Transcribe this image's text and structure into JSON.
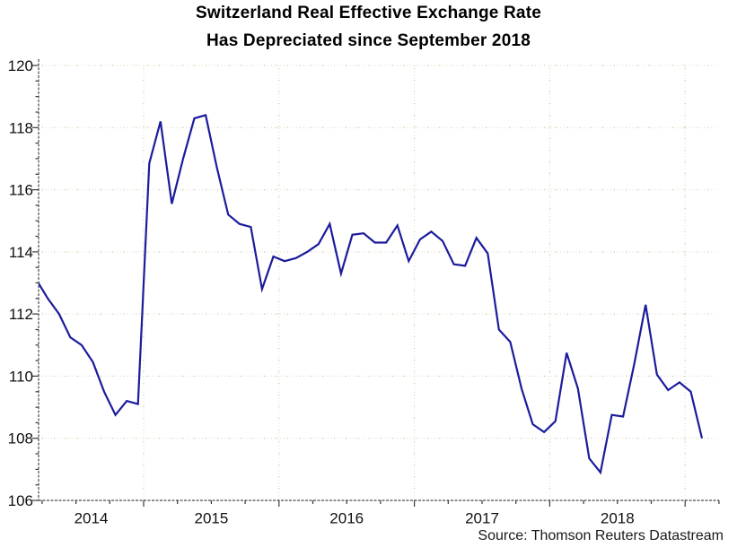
{
  "chart_data": {
    "type": "line",
    "title_line1": "Switzerland Real Effective Exchange Rate",
    "title_line2": "Has Depreciated since September 2018",
    "source_note": "Source: Thomson Reuters Datastream",
    "ylim": [
      106,
      120
    ],
    "y_ticks": [
      106,
      108,
      110,
      112,
      114,
      116,
      118,
      120
    ],
    "y_minor_tick_step": 0.5,
    "x_tick_frequency": "quarterly",
    "x_year_labels": [
      "2014",
      "2015",
      "2016",
      "2017",
      "2018"
    ],
    "x_gridlines_at": [
      "Jan 2015",
      "Jan 2016",
      "Jan 2017",
      "Jan 2018",
      "Jan 2019"
    ],
    "grid": "dotted",
    "legend": "none",
    "frequency": "monthly",
    "start_month": "2014-03",
    "end_month": "2019-02",
    "line_color": "#1c1c9c",
    "axis_color": "#4a4a4a",
    "grid_color_h": "#edd9c3",
    "grid_color_v": "#e6e0bb",
    "grid_accent_color": "#a6cfa6",
    "series": [
      {
        "name": "Switzerland real effective exchange rate",
        "values": [
          113.1,
          112.5,
          112.0,
          111.25,
          111.0,
          110.45,
          109.5,
          108.75,
          109.2,
          109.1,
          116.85,
          118.2,
          115.55,
          117.0,
          118.3,
          118.4,
          116.7,
          115.2,
          114.9,
          114.8,
          112.8,
          113.85,
          113.7,
          113.8,
          114.0,
          114.25,
          114.9,
          113.3,
          114.55,
          114.6,
          114.3,
          114.3,
          114.85,
          113.7,
          114.4,
          114.65,
          114.35,
          113.6,
          113.55,
          114.45,
          113.95,
          111.5,
          111.1,
          109.6,
          108.45,
          108.2,
          108.55,
          110.75,
          109.6,
          107.35,
          106.9,
          108.75,
          108.7,
          110.4,
          112.3,
          110.05,
          109.55,
          109.8,
          109.5,
          108.0
        ]
      }
    ]
  }
}
